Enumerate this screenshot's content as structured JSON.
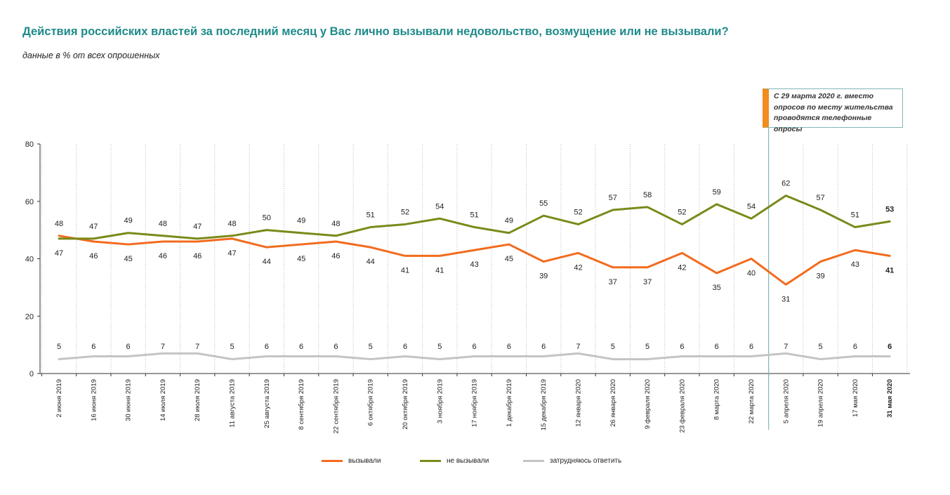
{
  "header": {
    "title": "Действия российских властей за последний месяц у Вас лично вызывали недовольство, возмущение или не вызывали?",
    "subtitle": "данные в % от всех опрошенных"
  },
  "annotation": {
    "text": "С 29 марта 2020 г. вместо опросов по месту жительства проводятся телефонные опросы"
  },
  "colors": {
    "series1": "#f26b1d",
    "series2": "#7a8a1a",
    "series3": "#c4c4c4",
    "title": "#1f8a8a",
    "accent_line": "#7fb8b8",
    "note_bar": "#f28c1e"
  },
  "chart_data": {
    "type": "line",
    "title": "Действия российских властей за последний месяц у Вас лично вызывали недовольство, возмущение или не вызывали?",
    "subtitle": "данные в % от всех опрошенных",
    "xlabel": "",
    "ylabel": "",
    "ylim": [
      0,
      80
    ],
    "yticks": [
      0,
      20,
      40,
      60,
      80
    ],
    "grid": "vertical dotted",
    "legend": "bottom",
    "categories": [
      "2 июня 2019",
      "16 июня 2019",
      "30 июня 2019",
      "14 июля 2019",
      "28 июля 2019",
      "11 августа 2019",
      "25 августа 2019",
      "8 сентября 2019",
      "22 сентября 2019",
      "6 октября 2019",
      "20 октября 2019",
      "3 ноября 2019",
      "17 ноября 2019",
      "1 декабря 2019",
      "15 декабря 2019",
      "12 января 2020",
      "26 января 2020",
      "9 февраля 2020",
      "23 февраля 2020",
      "8 марта 2020",
      "22 марта 2020",
      "5 апреля 2020",
      "19 апреля 2020",
      "17 мая 2020",
      "31 мая 2020"
    ],
    "series": [
      {
        "name": "вызывали",
        "values": [
          48,
          46,
          45,
          46,
          46,
          47,
          44,
          45,
          46,
          44,
          41,
          41,
          43,
          45,
          39,
          42,
          37,
          37,
          42,
          35,
          40,
          31,
          39,
          43,
          41
        ]
      },
      {
        "name": "не вызывали",
        "values": [
          47,
          47,
          49,
          48,
          47,
          48,
          50,
          49,
          48,
          51,
          52,
          54,
          51,
          49,
          55,
          52,
          57,
          58,
          52,
          59,
          54,
          62,
          57,
          51,
          53
        ]
      },
      {
        "name": "затрудняюсь ответить",
        "values": [
          5,
          6,
          6,
          7,
          7,
          5,
          6,
          6,
          6,
          5,
          6,
          5,
          6,
          6,
          6,
          7,
          5,
          5,
          6,
          6,
          6,
          7,
          5,
          6,
          6
        ]
      }
    ],
    "separator_after_category": "22 марта 2020"
  }
}
